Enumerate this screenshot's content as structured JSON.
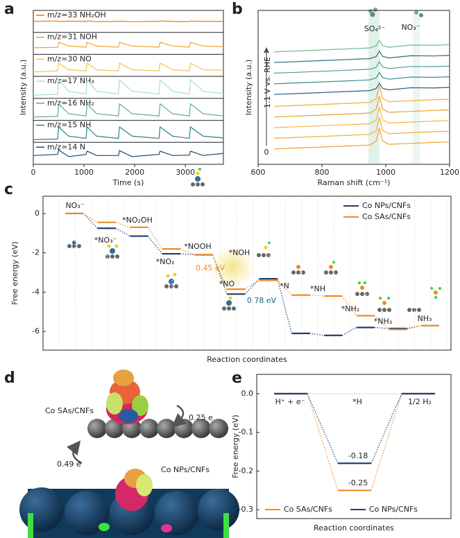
{
  "panel_labels": [
    "a",
    "b",
    "c",
    "d",
    "e"
  ],
  "chart_data": [
    {
      "type": "line",
      "stacked_panels": true,
      "xlabel": "Time (s)",
      "ylabel": "Intensity (a.u.)",
      "xlim": [
        0,
        3750
      ],
      "xticks": [
        0,
        1000,
        2000,
        3000
      ],
      "ylim": [
        0,
        1
      ],
      "x": [
        0,
        480,
        500,
        700,
        1040,
        1060,
        1250,
        1680,
        1700,
        1950,
        2480,
        2500,
        2750,
        3080,
        3100,
        3350,
        3750
      ],
      "series": [
        {
          "name": "m/z=33 NH₂OH",
          "color": "#e8780c",
          "values": [
            0.5,
            0.52,
            0.49,
            0.51,
            0.5,
            0.52,
            0.49,
            0.5,
            0.51,
            0.49,
            0.5,
            0.52,
            0.5,
            0.49,
            0.51,
            0.5,
            0.5
          ]
        },
        {
          "name": "m/z=31 NOH",
          "color": "#f0a030",
          "values": [
            0.3,
            0.32,
            0.55,
            0.38,
            0.33,
            0.55,
            0.38,
            0.33,
            0.55,
            0.38,
            0.33,
            0.55,
            0.38,
            0.33,
            0.55,
            0.38,
            0.35
          ]
        },
        {
          "name": "m/z=30 NO",
          "color": "#f7c050",
          "values": [
            0.2,
            0.25,
            0.6,
            0.3,
            0.25,
            0.6,
            0.3,
            0.25,
            0.6,
            0.3,
            0.25,
            0.6,
            0.3,
            0.25,
            0.6,
            0.3,
            0.28
          ]
        },
        {
          "name": "m/z=17 NH₃",
          "color": "#a9dcd4",
          "values": [
            0.15,
            0.18,
            0.85,
            0.32,
            0.2,
            0.85,
            0.32,
            0.2,
            0.85,
            0.32,
            0.2,
            0.85,
            0.32,
            0.2,
            0.85,
            0.32,
            0.22
          ]
        },
        {
          "name": "m/z=16 NH₂",
          "color": "#5aa9a3",
          "values": [
            0.15,
            0.18,
            0.75,
            0.3,
            0.2,
            0.75,
            0.3,
            0.2,
            0.75,
            0.3,
            0.2,
            0.75,
            0.3,
            0.2,
            0.75,
            0.3,
            0.2
          ]
        },
        {
          "name": "m/z=15 NH",
          "color": "#2f7f86",
          "values": [
            0.12,
            0.15,
            0.7,
            0.28,
            0.18,
            0.7,
            0.28,
            0.18,
            0.7,
            0.28,
            0.18,
            0.7,
            0.28,
            0.18,
            0.7,
            0.28,
            0.2
          ]
        },
        {
          "name": "m/z=14 N",
          "color": "#1c4a6b",
          "values": [
            0.4,
            0.45,
            0.65,
            0.35,
            0.45,
            0.6,
            0.4,
            0.4,
            0.62,
            0.35,
            0.45,
            0.6,
            0.4,
            0.42,
            0.6,
            0.4,
            0.5
          ]
        }
      ]
    },
    {
      "type": "line",
      "stacked_panels": false,
      "xlabel": "Raman shift (cm⁻¹)",
      "ylabel": "Intensity (a.u.)",
      "xlim": [
        600,
        1200
      ],
      "xticks": [
        600,
        800,
        1000,
        1200
      ],
      "ylim": [
        -1.3,
        11.7
      ],
      "annotations": [
        "SO₄²⁻",
        "NO₃⁻",
        "1.1 V vs. RHE",
        "0"
      ],
      "x": [
        650,
        700,
        800,
        900,
        950,
        970,
        980,
        990,
        1010,
        1080,
        1150,
        1200
      ],
      "series": [
        {
          "color": "#f0a030",
          "values": [
            0,
            0.05,
            0.16,
            0.27,
            0.33,
            0.65,
            1.76,
            0.67,
            0.39,
            0.47,
            0.55,
            0.6
          ]
        },
        {
          "color": "#f2a73a",
          "values": [
            0.9,
            0.95,
            1.06,
            1.17,
            1.23,
            1.55,
            2.66,
            1.57,
            1.29,
            1.37,
            1.45,
            1.5
          ]
        },
        {
          "color": "#f5b340",
          "values": [
            1.8,
            1.85,
            1.96,
            2.07,
            2.13,
            2.45,
            3.56,
            2.47,
            2.19,
            2.27,
            2.35,
            2.4
          ]
        },
        {
          "color": "#e8a030",
          "values": [
            2.7,
            2.75,
            2.86,
            2.97,
            3.03,
            3.35,
            4.46,
            3.37,
            3.09,
            3.17,
            3.25,
            3.3
          ]
        },
        {
          "color": "#f0a83a",
          "values": [
            3.6,
            3.65,
            3.76,
            3.87,
            3.93,
            4.25,
            5.36,
            4.27,
            3.99,
            4.07,
            4.15,
            4.2
          ]
        },
        {
          "color": "#2e5f86",
          "values": [
            4.6,
            4.65,
            4.76,
            4.87,
            4.93,
            5.1,
            5.56,
            5.12,
            4.99,
            5.17,
            5.15,
            5.2
          ]
        },
        {
          "color": "#3a8a9a",
          "values": [
            5.5,
            5.55,
            5.66,
            5.77,
            5.83,
            6,
            6.46,
            6.02,
            5.89,
            6.07,
            6.05,
            6.1
          ]
        },
        {
          "color": "#4d9aa0",
          "values": [
            6.4,
            6.45,
            6.56,
            6.67,
            6.73,
            6.9,
            7.36,
            6.92,
            6.79,
            6.97,
            6.95,
            7
          ]
        },
        {
          "color": "#2a6e80",
          "values": [
            7.3,
            7.35,
            7.46,
            7.57,
            7.63,
            7.8,
            8.26,
            7.82,
            7.69,
            7.87,
            7.85,
            7.9
          ]
        },
        {
          "color": "#6fb89a",
          "values": [
            8.2,
            8.25,
            8.36,
            8.47,
            8.53,
            8.7,
            9.16,
            8.72,
            8.59,
            8.77,
            8.75,
            8.8
          ]
        }
      ]
    },
    {
      "type": "energy-diagram",
      "xlabel": "Reaction coordinates",
      "ylabel": "Free energy (eV)",
      "ylim": [
        -6.95,
        0.88
      ],
      "yticks": [
        0,
        -2,
        -4,
        -6
      ],
      "legend": "upper right",
      "categories": [
        "NO₃⁻",
        "*NO₃⁻",
        "*NO₂OH",
        "*NO₂",
        "*NOOH",
        "*NO",
        "*NOH",
        "*N",
        "*NH",
        "*NH₂",
        "*NH₃",
        "NH₃"
      ],
      "annotations": [
        "0.45 eV",
        "0.78 eV"
      ],
      "series": [
        {
          "name": "Co NPs/CNFs",
          "color": "#1d3f6b",
          "values": [
            0,
            -0.75,
            -1.15,
            -2.05,
            -2.1,
            -4.1,
            -3.32,
            -6.1,
            -6.2,
            -5.8,
            -5.85,
            -5.7
          ]
        },
        {
          "name": "Co SAs/CNFs",
          "color": "#f08a24",
          "values": [
            0,
            -0.45,
            -0.7,
            -1.8,
            -2.1,
            -3.85,
            -3.4,
            -4.15,
            -4.2,
            -5.2,
            -5.9,
            -5.7
          ]
        }
      ]
    },
    {
      "type": "energy-diagram",
      "xlabel": "Reaction coordinates",
      "ylabel": "Free energy (eV)",
      "ylim": [
        -0.323,
        0.05
      ],
      "yticks": [
        {
          "value": 0,
          "label": "0.0"
        },
        -0.1,
        -0.2,
        -0.3
      ],
      "legend": "lower center",
      "categories": [
        "H⁺ + e⁻",
        "*H",
        "1/2 H₂"
      ],
      "series": [
        {
          "name": "Co SAs/CNFs",
          "color": "#f08a24",
          "values": [
            0,
            -0.25,
            0
          ]
        },
        {
          "name": "Co NPs/CNFs",
          "color": "#1d3f6b",
          "values": [
            0,
            -0.18,
            0
          ]
        }
      ]
    }
  ],
  "figure_d": {
    "labels": [
      "Co SAs/CNFs",
      "0.25 e",
      "0.49 e",
      "Co NPs/CNFs"
    ]
  }
}
